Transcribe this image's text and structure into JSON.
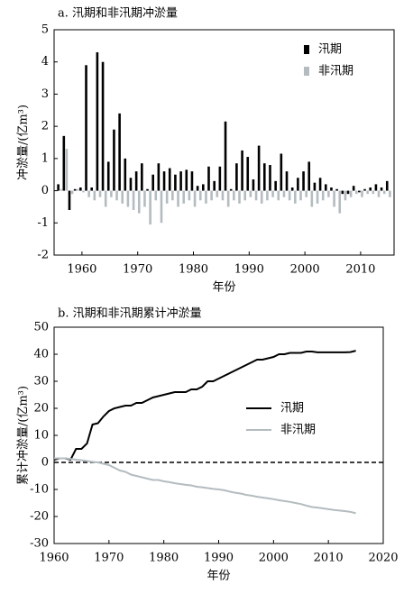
{
  "chart_data": [
    {
      "type": "bar",
      "title": "a. 汛期和非汛期冲淤量",
      "x_label": "年份",
      "y_label": "冲淤量/(亿m³)",
      "x": [
        1956,
        1957,
        1958,
        1959,
        1960,
        1961,
        1962,
        1963,
        1964,
        1965,
        1966,
        1967,
        1968,
        1969,
        1970,
        1971,
        1972,
        1973,
        1974,
        1975,
        1976,
        1977,
        1978,
        1979,
        1980,
        1981,
        1982,
        1983,
        1984,
        1985,
        1986,
        1987,
        1988,
        1989,
        1990,
        1991,
        1992,
        1993,
        1994,
        1995,
        1996,
        1997,
        1998,
        1999,
        2000,
        2001,
        2002,
        2003,
        2004,
        2005,
        2006,
        2007,
        2008,
        2009,
        2010,
        2011,
        2012,
        2013,
        2014,
        2015
      ],
      "series": [
        {
          "name": "汛期",
          "color": "#000000",
          "values": [
            0.2,
            1.7,
            -0.6,
            0.05,
            0.1,
            3.9,
            0.1,
            4.3,
            4.0,
            0.9,
            1.9,
            2.4,
            1.0,
            0.4,
            0.6,
            0.85,
            0.05,
            0.5,
            0.85,
            0.6,
            0.7,
            0.5,
            0.6,
            0.65,
            0.6,
            0.15,
            0.2,
            0.75,
            0.3,
            0.75,
            2.15,
            0.05,
            0.85,
            1.25,
            1.05,
            0.35,
            1.4,
            0.85,
            0.8,
            0.3,
            1.15,
            0.6,
            0.1,
            0.4,
            0.6,
            0.9,
            0.25,
            0.4,
            0.2,
            0.1,
            0.05,
            -0.1,
            -0.1,
            0.15,
            -0.05,
            0.05,
            0.1,
            0.2,
            0.1,
            0.3
          ]
        },
        {
          "name": "非汛期",
          "color": "#b4bcc0",
          "values": [
            0.05,
            1.3,
            -0.1,
            0.05,
            -0.05,
            -0.2,
            -0.3,
            -0.2,
            -0.5,
            -0.2,
            -0.3,
            -0.4,
            -0.5,
            -0.6,
            -0.7,
            -0.5,
            -1.05,
            -0.3,
            -1.0,
            -0.4,
            -0.3,
            -0.5,
            -0.4,
            -0.3,
            -0.5,
            -0.3,
            -0.4,
            -0.3,
            -0.2,
            -0.3,
            -0.5,
            -0.3,
            -0.4,
            -0.3,
            -0.2,
            -0.3,
            -0.4,
            -0.3,
            -0.2,
            -0.3,
            -0.2,
            -0.3,
            -0.4,
            -0.3,
            -0.2,
            -0.5,
            -0.4,
            -0.3,
            -0.2,
            -0.5,
            -0.7,
            -0.3,
            -0.2,
            -0.1,
            -0.2,
            -0.1,
            -0.1,
            -0.2,
            -0.1,
            -0.2
          ]
        }
      ],
      "xlim": [
        1955,
        2016
      ],
      "xticks": [
        1960,
        1970,
        1980,
        1990,
        2000,
        2010
      ],
      "ylim": [
        -2,
        5
      ],
      "yticks": [
        -2,
        -1,
        0,
        1,
        2,
        3,
        4,
        5
      ],
      "legend": "upper right"
    },
    {
      "type": "line",
      "title": "b. 汛期和非汛期累计冲淤量",
      "x_label": "年份",
      "y_label": "累计冲淤量/(亿m³)",
      "x": [
        1960,
        1961,
        1962,
        1963,
        1964,
        1965,
        1966,
        1967,
        1968,
        1969,
        1970,
        1971,
        1972,
        1973,
        1974,
        1975,
        1976,
        1977,
        1978,
        1979,
        1980,
        1981,
        1982,
        1983,
        1984,
        1985,
        1986,
        1987,
        1988,
        1989,
        1990,
        1991,
        1992,
        1993,
        1994,
        1995,
        1996,
        1997,
        1998,
        1999,
        2000,
        2001,
        2002,
        2003,
        2004,
        2005,
        2006,
        2007,
        2008,
        2009,
        2010,
        2011,
        2012,
        2013,
        2014,
        2015
      ],
      "series": [
        {
          "name": "汛期",
          "color": "#000000",
          "values": [
            1,
            1.5,
            1.5,
            1,
            5,
            5,
            7,
            14,
            14.5,
            17,
            19,
            20,
            20.5,
            21,
            21,
            22,
            22,
            23,
            24,
            24.5,
            25,
            25.5,
            26,
            26,
            26,
            27,
            27,
            28,
            30,
            30,
            31,
            32,
            33,
            34,
            35,
            36,
            37,
            38,
            38,
            38.5,
            39,
            40,
            40,
            40.5,
            40.5,
            40.5,
            41,
            41,
            40.7,
            40.7,
            40.7,
            40.7,
            40.7,
            40.7,
            40.8,
            41.3
          ]
        },
        {
          "name": "非汛期",
          "color": "#b4bcc0",
          "values": [
            1.5,
            1.5,
            1.5,
            1.3,
            1,
            0.8,
            0.5,
            0.2,
            0,
            -0.5,
            -1,
            -2,
            -3,
            -3.5,
            -4.5,
            -5,
            -5.5,
            -6,
            -6.5,
            -6.5,
            -7,
            -7.3,
            -7.7,
            -8,
            -8.3,
            -8.5,
            -9,
            -9.2,
            -9.5,
            -9.8,
            -10,
            -10.3,
            -10.8,
            -11.2,
            -11.5,
            -12,
            -12.3,
            -12.7,
            -13,
            -13.3,
            -13.6,
            -14,
            -14.3,
            -14.6,
            -15,
            -15.4,
            -16,
            -16.5,
            -16.7,
            -17,
            -17.3,
            -17.6,
            -17.8,
            -18,
            -18.3,
            -18.8
          ]
        }
      ],
      "xlim": [
        1960,
        2020
      ],
      "xticks": [
        1960,
        1970,
        1980,
        1990,
        2000,
        2010,
        2020
      ],
      "ylim": [
        -30,
        50
      ],
      "yticks": [
        -30,
        -20,
        -10,
        0,
        10,
        20,
        30,
        40,
        50
      ],
      "zero_line": true,
      "legend": "center right"
    }
  ]
}
